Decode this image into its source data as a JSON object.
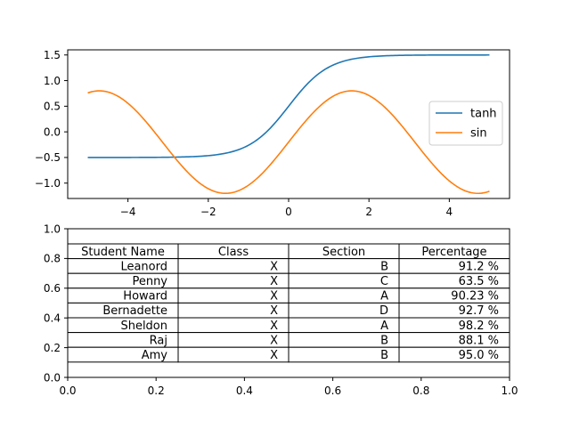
{
  "chart_data": [
    {
      "type": "line",
      "title": "",
      "xlabel": "",
      "ylabel": "",
      "xlim": [
        -5.5,
        5.5
      ],
      "ylim": [
        -1.3,
        1.6
      ],
      "x_ticks": [
        -4,
        -2,
        0,
        2,
        4
      ],
      "x_tick_labels": [
        "−4",
        "−2",
        "0",
        "2",
        "4"
      ],
      "y_ticks": [
        1.5,
        1.0,
        0.5,
        0.0,
        -0.5,
        -1.0
      ],
      "y_tick_labels": [
        "1.5",
        "1.0",
        "0.5",
        "0.0",
        "−0.5",
        "−1.0"
      ],
      "x_range": [
        -5,
        5
      ],
      "series": [
        {
          "name": "tanh",
          "formula": "tanh(x)+0.5",
          "color": "#1f77b4",
          "x": [
            -5,
            -4,
            -3,
            -2,
            -1.5,
            -1,
            -0.5,
            0,
            0.5,
            1,
            1.5,
            2,
            3,
            4,
            5
          ],
          "y": [
            -0.5,
            -0.499,
            -0.495,
            -0.464,
            -0.405,
            -0.262,
            0.038,
            0.5,
            0.962,
            1.262,
            1.405,
            1.464,
            1.495,
            1.499,
            1.5
          ]
        },
        {
          "name": "sin",
          "formula": "sin(x)-0.2",
          "color": "#ff7f0e",
          "x": [
            -5,
            -4.712,
            -4,
            -3,
            -2,
            -1.571,
            -1,
            0,
            1,
            1.571,
            2,
            3,
            4,
            4.712,
            5
          ],
          "y": [
            0.759,
            0.8,
            0.557,
            -0.341,
            -1.109,
            -1.2,
            -1.041,
            -0.2,
            0.641,
            0.8,
            0.709,
            -0.059,
            -0.957,
            -1.2,
            -1.159
          ]
        }
      ],
      "legend": {
        "placement": "center-right",
        "entries": [
          "tanh",
          "sin"
        ]
      }
    },
    {
      "type": "table",
      "xlim": [
        0.0,
        1.0
      ],
      "ylim": [
        0.0,
        1.0
      ],
      "x_tick_labels": [
        "0.0",
        "0.2",
        "0.4",
        "0.6",
        "0.8",
        "1.0"
      ],
      "y_tick_labels": [
        "0.0",
        "0.2",
        "0.4",
        "0.6",
        "0.8",
        "1.0"
      ],
      "columns": [
        "Student Name",
        "Class",
        "Section",
        "Percentage"
      ],
      "rows": [
        [
          "Leanord",
          "X",
          "B",
          "91.2 %"
        ],
        [
          "Penny",
          "X",
          "C",
          "63.5 %"
        ],
        [
          "Howard",
          "X",
          "A",
          "90.23 %"
        ],
        [
          "Bernadette",
          "X",
          "D",
          "92.7 %"
        ],
        [
          "Sheldon",
          "X",
          "A",
          "98.2 %"
        ],
        [
          "Raj",
          "X",
          "B",
          "88.1 %"
        ],
        [
          "Amy",
          "X",
          "B",
          "95.0 %"
        ]
      ]
    }
  ]
}
